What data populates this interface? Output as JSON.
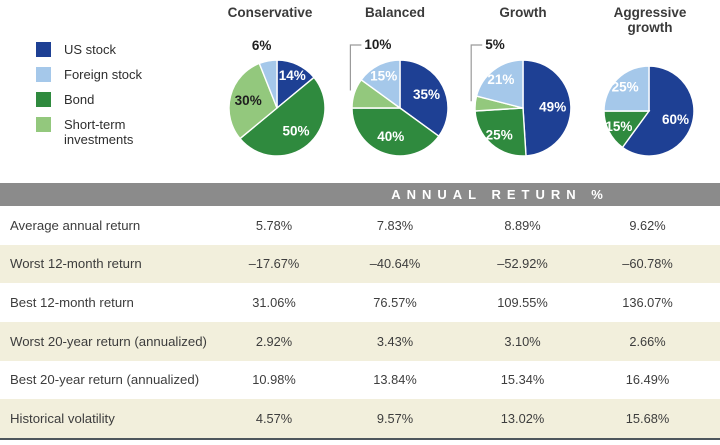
{
  "palette": {
    "us_stock": "#1e4094",
    "foreign_stock": "#a5c8ea",
    "bond": "#2f8a3e",
    "short_term": "#93c87d",
    "header_gray": "#8b8b8b",
    "row_cream": "#f2efdc",
    "bottom_rule": "#4e565c",
    "text_dark": "#3d3d3d"
  },
  "legend": {
    "items": [
      {
        "label": "US stock",
        "color_key": "us_stock"
      },
      {
        "label": "Foreign stock",
        "color_key": "foreign_stock"
      },
      {
        "label": "Bond",
        "color_key": "bond"
      },
      {
        "label": "Short-term investments",
        "color_key": "short_term"
      }
    ]
  },
  "chart_data": [
    {
      "type": "pie",
      "title": "Conservative",
      "slices": [
        {
          "label": "US stock",
          "value": 14,
          "color_key": "us_stock",
          "label_text": "14%",
          "label_placement": "inside",
          "callout": false
        },
        {
          "label": "Bond",
          "value": 50,
          "color_key": "bond",
          "label_text": "50%",
          "label_placement": "inside",
          "callout": false
        },
        {
          "label": "Short-term investments",
          "value": 30,
          "color_key": "short_term",
          "label_text": "30%",
          "label_placement": "inside",
          "callout": false
        },
        {
          "label": "Foreign stock",
          "value": 6,
          "color_key": "foreign_stock",
          "label_text": "6%",
          "label_placement": "outside",
          "callout": false
        }
      ]
    },
    {
      "type": "pie",
      "title": "Balanced",
      "slices": [
        {
          "label": "US stock",
          "value": 35,
          "color_key": "us_stock",
          "label_text": "35%",
          "label_placement": "inside",
          "callout": false
        },
        {
          "label": "Bond",
          "value": 40,
          "color_key": "bond",
          "label_text": "40%",
          "label_placement": "inside",
          "callout": false
        },
        {
          "label": "Short-term investments",
          "value": 10,
          "color_key": "short_term",
          "label_text": "10%",
          "label_placement": "outside",
          "callout": true
        },
        {
          "label": "Foreign stock",
          "value": 15,
          "color_key": "foreign_stock",
          "label_text": "15%",
          "label_placement": "inside",
          "callout": false
        }
      ]
    },
    {
      "type": "pie",
      "title": "Growth",
      "slices": [
        {
          "label": "US stock",
          "value": 49,
          "color_key": "us_stock",
          "label_text": "49%",
          "label_placement": "inside",
          "callout": false
        },
        {
          "label": "Bond",
          "value": 25,
          "color_key": "bond",
          "label_text": "25%",
          "label_placement": "inside",
          "callout": false
        },
        {
          "label": "Short-term investments",
          "value": 5,
          "color_key": "short_term",
          "label_text": "5%",
          "label_placement": "outside",
          "callout": true
        },
        {
          "label": "Foreign stock",
          "value": 21,
          "color_key": "foreign_stock",
          "label_text": "21%",
          "label_placement": "inside",
          "callout": false
        }
      ]
    },
    {
      "type": "pie",
      "title": "Aggressive growth",
      "slices": [
        {
          "label": "US stock",
          "value": 60,
          "color_key": "us_stock",
          "label_text": "60%",
          "label_placement": "inside",
          "callout": false
        },
        {
          "label": "Bond",
          "value": 15,
          "color_key": "bond",
          "label_text": "15%",
          "label_placement": "inside",
          "callout": false
        },
        {
          "label": "Foreign stock",
          "value": 25,
          "color_key": "foreign_stock",
          "label_text": "25%",
          "label_placement": "inside",
          "callout": false
        }
      ]
    }
  ],
  "table": {
    "header": "ANNUAL RETURN %",
    "columns": [
      "Conservative",
      "Balanced",
      "Growth",
      "Aggressive growth"
    ],
    "rows": [
      {
        "label": "Average annual return",
        "values": [
          "5.78%",
          "7.83%",
          "8.89%",
          "9.62%"
        ]
      },
      {
        "label": "Worst 12-month return",
        "values": [
          "–17.67%",
          "–40.64%",
          "–52.92%",
          "–60.78%"
        ]
      },
      {
        "label": "Best 12-month return",
        "values": [
          "31.06%",
          "76.57%",
          "109.55%",
          "136.07%"
        ]
      },
      {
        "label": "Worst 20-year return (annualized)",
        "values": [
          "2.92%",
          "3.43%",
          "3.10%",
          "2.66%"
        ]
      },
      {
        "label": "Best 20-year return (annualized)",
        "values": [
          "10.98%",
          "13.84%",
          "15.34%",
          "16.49%"
        ]
      },
      {
        "label": "Historical volatility",
        "values": [
          "4.57%",
          "9.57%",
          "13.02%",
          "15.68%"
        ]
      }
    ]
  }
}
